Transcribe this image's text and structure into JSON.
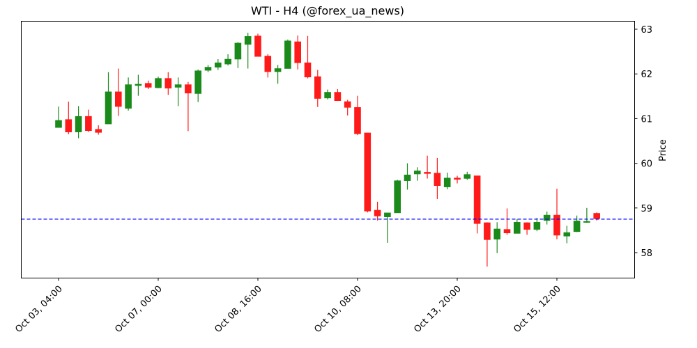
{
  "chart_data": {
    "type": "candlestick",
    "title": "WTI - H4 (@forex_ua_news)",
    "xlabel": "",
    "ylabel": "Price",
    "ylim": [
      57.43,
      63.18
    ],
    "y_ticks": [
      58,
      59,
      60,
      61,
      62,
      63
    ],
    "y_axis_position": "right",
    "grid": false,
    "legend": null,
    "x_ticks": [
      {
        "index": 0,
        "label": "Oct 03, 04:00"
      },
      {
        "index": 10,
        "label": "Oct 07, 00:00"
      },
      {
        "index": 20,
        "label": "Oct 08, 16:00"
      },
      {
        "index": 30,
        "label": "Oct 10, 08:00"
      },
      {
        "index": 40,
        "label": "Oct 13, 20:00"
      },
      {
        "index": 50,
        "label": "Oct 15, 12:00"
      }
    ],
    "up_color": "#1a8a1a",
    "down_color": "#ff1a1a",
    "horizontal_line": {
      "value": 58.75,
      "color": "#0000ff",
      "style": "dashed"
    },
    "candles": [
      {
        "o": 60.8,
        "h": 61.27,
        "l": 60.8,
        "c": 60.96
      },
      {
        "o": 60.98,
        "h": 61.38,
        "l": 60.65,
        "c": 60.7
      },
      {
        "o": 60.7,
        "h": 61.28,
        "l": 60.56,
        "c": 61.05
      },
      {
        "o": 61.05,
        "h": 61.2,
        "l": 60.7,
        "c": 60.73
      },
      {
        "o": 60.76,
        "h": 60.85,
        "l": 60.64,
        "c": 60.69
      },
      {
        "o": 60.88,
        "h": 62.04,
        "l": 60.88,
        "c": 61.6
      },
      {
        "o": 61.6,
        "h": 62.12,
        "l": 61.06,
        "c": 61.27
      },
      {
        "o": 61.23,
        "h": 61.92,
        "l": 61.18,
        "c": 61.76
      },
      {
        "o": 61.74,
        "h": 61.98,
        "l": 61.51,
        "c": 61.77
      },
      {
        "o": 61.79,
        "h": 61.85,
        "l": 61.66,
        "c": 61.7
      },
      {
        "o": 61.69,
        "h": 61.94,
        "l": 61.68,
        "c": 61.9
      },
      {
        "o": 61.9,
        "h": 62.04,
        "l": 61.53,
        "c": 61.68
      },
      {
        "o": 61.7,
        "h": 61.92,
        "l": 61.28,
        "c": 61.76
      },
      {
        "o": 61.76,
        "h": 61.82,
        "l": 60.72,
        "c": 61.57
      },
      {
        "o": 61.56,
        "h": 62.1,
        "l": 61.37,
        "c": 62.07
      },
      {
        "o": 62.08,
        "h": 62.2,
        "l": 62.04,
        "c": 62.15
      },
      {
        "o": 62.15,
        "h": 62.33,
        "l": 62.09,
        "c": 62.25
      },
      {
        "o": 62.22,
        "h": 62.44,
        "l": 62.19,
        "c": 62.33
      },
      {
        "o": 62.33,
        "h": 62.71,
        "l": 62.13,
        "c": 62.69
      },
      {
        "o": 62.66,
        "h": 62.92,
        "l": 62.12,
        "c": 62.84
      },
      {
        "o": 62.85,
        "h": 62.9,
        "l": 62.39,
        "c": 62.39
      },
      {
        "o": 62.4,
        "h": 62.44,
        "l": 61.92,
        "c": 62.05
      },
      {
        "o": 62.05,
        "h": 62.2,
        "l": 61.78,
        "c": 62.12
      },
      {
        "o": 62.12,
        "h": 62.77,
        "l": 62.12,
        "c": 62.74
      },
      {
        "o": 62.72,
        "h": 62.86,
        "l": 62.1,
        "c": 62.25
      },
      {
        "o": 62.25,
        "h": 62.85,
        "l": 61.9,
        "c": 61.93
      },
      {
        "o": 61.94,
        "h": 62.09,
        "l": 61.26,
        "c": 61.45
      },
      {
        "o": 61.46,
        "h": 61.65,
        "l": 61.43,
        "c": 61.59
      },
      {
        "o": 61.59,
        "h": 61.66,
        "l": 61.4,
        "c": 61.4
      },
      {
        "o": 61.38,
        "h": 61.42,
        "l": 61.07,
        "c": 61.25
      },
      {
        "o": 61.25,
        "h": 61.51,
        "l": 60.63,
        "c": 60.66
      },
      {
        "o": 60.68,
        "h": 60.68,
        "l": 58.9,
        "c": 58.93
      },
      {
        "o": 58.95,
        "h": 59.14,
        "l": 58.72,
        "c": 58.82
      },
      {
        "o": 58.8,
        "h": 58.89,
        "l": 58.22,
        "c": 58.89
      },
      {
        "o": 58.89,
        "h": 59.63,
        "l": 58.89,
        "c": 59.61
      },
      {
        "o": 59.61,
        "h": 60.0,
        "l": 59.41,
        "c": 59.74
      },
      {
        "o": 59.76,
        "h": 59.91,
        "l": 59.61,
        "c": 59.83
      },
      {
        "o": 59.8,
        "h": 60.17,
        "l": 59.66,
        "c": 59.77
      },
      {
        "o": 59.78,
        "h": 60.12,
        "l": 59.2,
        "c": 59.5
      },
      {
        "o": 59.47,
        "h": 59.79,
        "l": 59.42,
        "c": 59.67
      },
      {
        "o": 59.67,
        "h": 59.72,
        "l": 59.55,
        "c": 59.64
      },
      {
        "o": 59.66,
        "h": 59.81,
        "l": 59.63,
        "c": 59.75
      },
      {
        "o": 59.72,
        "h": 59.72,
        "l": 58.43,
        "c": 58.65
      },
      {
        "o": 58.67,
        "h": 58.68,
        "l": 57.69,
        "c": 58.29
      },
      {
        "o": 58.3,
        "h": 58.68,
        "l": 57.99,
        "c": 58.53
      },
      {
        "o": 58.52,
        "h": 58.99,
        "l": 58.4,
        "c": 58.44
      },
      {
        "o": 58.43,
        "h": 58.75,
        "l": 58.43,
        "c": 58.68
      },
      {
        "o": 58.67,
        "h": 58.68,
        "l": 58.4,
        "c": 58.52
      },
      {
        "o": 58.52,
        "h": 58.78,
        "l": 58.48,
        "c": 58.68
      },
      {
        "o": 58.72,
        "h": 58.92,
        "l": 58.63,
        "c": 58.84
      },
      {
        "o": 58.84,
        "h": 59.43,
        "l": 58.3,
        "c": 58.39
      },
      {
        "o": 58.37,
        "h": 58.6,
        "l": 58.21,
        "c": 58.45
      },
      {
        "o": 58.47,
        "h": 58.83,
        "l": 58.46,
        "c": 58.71
      },
      {
        "o": 58.68,
        "h": 59.0,
        "l": 58.67,
        "c": 58.7
      },
      {
        "o": 58.88,
        "h": 58.9,
        "l": 58.72,
        "c": 58.76
      }
    ]
  }
}
